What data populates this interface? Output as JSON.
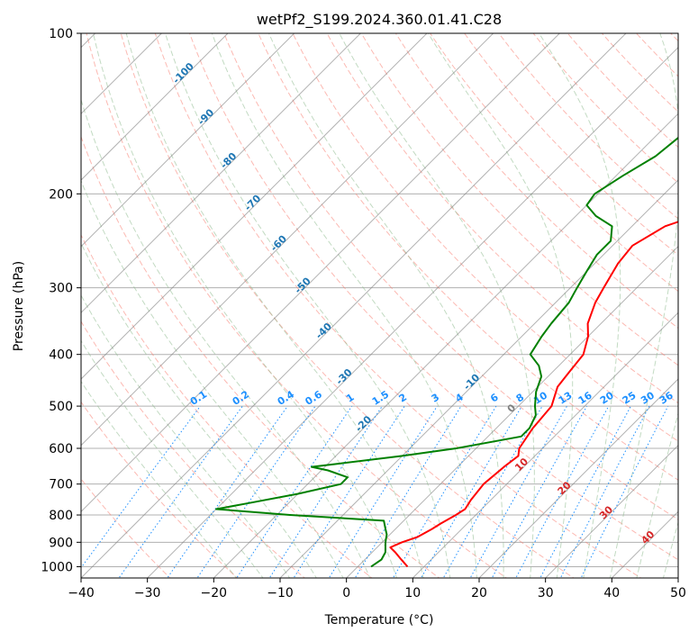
{
  "chart_data": {
    "type": "line",
    "subtype": "skew-T log-P diagram",
    "title": "wetPf2_S199.2024.360.01.41.C28",
    "xlabel": "Temperature (°C)",
    "ylabel": "Pressure (hPa)",
    "xlim": [
      -40,
      50
    ],
    "ylim": [
      1050,
      100
    ],
    "y_scale": "log",
    "skew_degrees": 45,
    "x_ticks": [
      -40,
      -30,
      -20,
      -10,
      0,
      10,
      20,
      30,
      40,
      50
    ],
    "y_ticks": [
      100,
      200,
      300,
      400,
      500,
      600,
      700,
      800,
      900,
      1000
    ],
    "grid": true,
    "series": [
      {
        "role": "temperature",
        "color": "#ff0000",
        "points": [
          [
            1000,
            7.5
          ],
          [
            970,
            5.5
          ],
          [
            940,
            3.5
          ],
          [
            920,
            2.0
          ],
          [
            900,
            3.0
          ],
          [
            880,
            4.5
          ],
          [
            850,
            5.5
          ],
          [
            830,
            6.0
          ],
          [
            800,
            7.0
          ],
          [
            780,
            7.5
          ],
          [
            750,
            7.0
          ],
          [
            700,
            6.5
          ],
          [
            650,
            7.0
          ],
          [
            620,
            7.5
          ],
          [
            600,
            6.5
          ],
          [
            550,
            5.5
          ],
          [
            500,
            5.0
          ],
          [
            460,
            3.0
          ],
          [
            430,
            2.5
          ],
          [
            400,
            2.0
          ],
          [
            370,
            0.0
          ],
          [
            350,
            -2.0
          ],
          [
            320,
            -4.0
          ],
          [
            300,
            -5.0
          ],
          [
            270,
            -6.5
          ],
          [
            250,
            -7.0
          ],
          [
            230,
            -5.0
          ],
          [
            220,
            -2.0
          ],
          [
            210,
            1.0
          ],
          [
            200,
            3.0
          ],
          [
            180,
            6.0
          ],
          [
            160,
            7.5
          ],
          [
            140,
            8.0
          ],
          [
            120,
            8.0
          ],
          [
            110,
            8.5
          ],
          [
            103,
            9.0
          ]
        ]
      },
      {
        "role": "dewpoint",
        "color": "#008000",
        "points": [
          [
            1000,
            2.0
          ],
          [
            970,
            2.5
          ],
          [
            940,
            2.0
          ],
          [
            900,
            0.5
          ],
          [
            870,
            -0.5
          ],
          [
            850,
            -1.5
          ],
          [
            820,
            -3.0
          ],
          [
            800,
            -18.0
          ],
          [
            780,
            -30.0
          ],
          [
            760,
            -26.0
          ],
          [
            730,
            -20.0
          ],
          [
            700,
            -15.0
          ],
          [
            680,
            -15.0
          ],
          [
            660,
            -19.0
          ],
          [
            650,
            -22.0
          ],
          [
            640,
            -18.0
          ],
          [
            620,
            -10.0
          ],
          [
            600,
            -3.0
          ],
          [
            570,
            5.0
          ],
          [
            550,
            5.0
          ],
          [
            520,
            4.0
          ],
          [
            500,
            2.5
          ],
          [
            470,
            0.5
          ],
          [
            440,
            -1.0
          ],
          [
            420,
            -3.0
          ],
          [
            400,
            -6.0
          ],
          [
            370,
            -7.0
          ],
          [
            350,
            -7.5
          ],
          [
            320,
            -8.0
          ],
          [
            300,
            -9.0
          ],
          [
            280,
            -10.0
          ],
          [
            260,
            -11.0
          ],
          [
            245,
            -11.0
          ],
          [
            230,
            -13.0
          ],
          [
            220,
            -17.0
          ],
          [
            210,
            -20.0
          ],
          [
            200,
            -20.5
          ],
          [
            185,
            -19.0
          ],
          [
            170,
            -17.0
          ],
          [
            150,
            -16.0
          ],
          [
            135,
            -15.5
          ],
          [
            125,
            -14.0
          ],
          [
            115,
            -10.0
          ],
          [
            110,
            -7.0
          ],
          [
            105,
            -3.0
          ],
          [
            100,
            0.5
          ]
        ]
      }
    ],
    "isotherm_labels": [
      "-100",
      "-90",
      "-80",
      "-70",
      "-60",
      "-50",
      "-40",
      "-30",
      "-20",
      "-10",
      "0",
      "10",
      "20",
      "30",
      "40"
    ],
    "mixing_ratio_labels": [
      "0.1",
      "0.2",
      "0.4",
      "0.6",
      "1",
      "1.5",
      "2",
      "3",
      "4",
      "6",
      "8",
      "10",
      "13",
      "16",
      "20",
      "25",
      "30",
      "36"
    ],
    "mixing_ratio_values": [
      0.1,
      0.2,
      0.4,
      0.6,
      1,
      1.5,
      2,
      3,
      4,
      6,
      8,
      10,
      13,
      16,
      20,
      25,
      30,
      36
    ],
    "colors": {
      "temperature": "#ff0000",
      "dewpoint": "#008000",
      "dry_adiabats": "#fa8072",
      "moist_adiabats": "#8fbc8f",
      "mixing_ratio_lines": "#1e90ff",
      "isotherms": "#808080",
      "label_blue": "#1f77b4",
      "label_red": "#d62728"
    }
  }
}
